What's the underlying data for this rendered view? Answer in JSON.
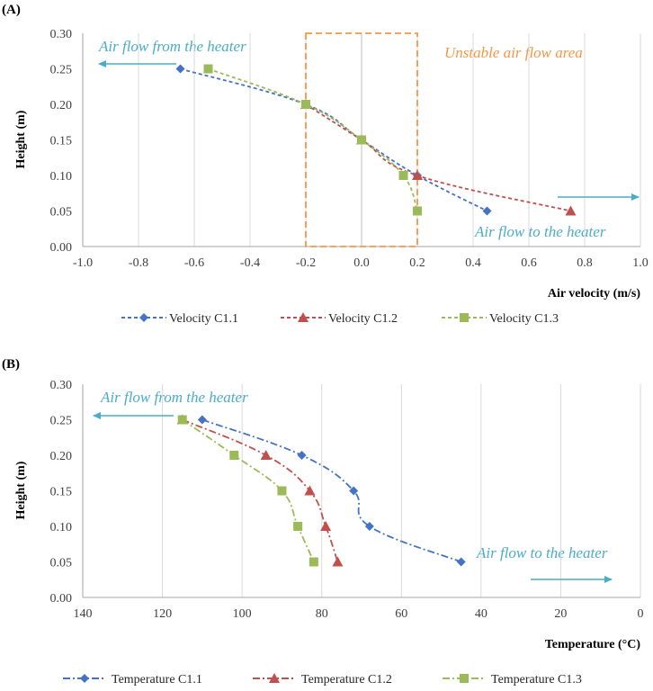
{
  "colors": {
    "blue": "#4472C4",
    "red": "#C0504D",
    "green": "#9BBB59",
    "arrow": "#4BACC6",
    "orange": "#F79646",
    "grid": "#D9D9D9",
    "axis": "#A6A6A6"
  },
  "chart_data": [
    {
      "type": "line",
      "panel_label": "(A)",
      "xlabel": "Air velocity (m/s)",
      "ylabel": "Height (m)",
      "xlim": [
        -1.0,
        1.0
      ],
      "ylim": [
        0.0,
        0.3
      ],
      "x_ticks": [
        "-1.0",
        "-0.8",
        "-0.6",
        "-0.4",
        "-0.2",
        "0.0",
        "0.2",
        "0.4",
        "0.6",
        "0.8",
        "1.0"
      ],
      "y_ticks": [
        "0.00",
        "0.05",
        "0.10",
        "0.15",
        "0.20",
        "0.25",
        "0.30"
      ],
      "grid": "vertical",
      "legend_position": "bottom",
      "series": [
        {
          "name": "Velocity C1.1",
          "marker": "diamond",
          "color_key": "blue",
          "points": [
            [
              -0.65,
              0.25
            ],
            [
              -0.2,
              0.2
            ],
            [
              0.0,
              0.15
            ],
            [
              0.2,
              0.1
            ],
            [
              0.45,
              0.05
            ]
          ]
        },
        {
          "name": "Velocity C1.2",
          "marker": "triangle",
          "color_key": "red",
          "points": [
            [
              -0.2,
              0.2
            ],
            [
              0.0,
              0.15
            ],
            [
              0.2,
              0.1
            ],
            [
              0.75,
              0.05
            ]
          ]
        },
        {
          "name": "Velocity C1.3",
          "marker": "square",
          "color_key": "green",
          "points": [
            [
              -0.55,
              0.25
            ],
            [
              -0.2,
              0.2
            ],
            [
              0.0,
              0.15
            ],
            [
              0.15,
              0.1
            ],
            [
              0.2,
              0.05
            ]
          ]
        }
      ],
      "annotations": {
        "from_heater": "Air flow from the heater",
        "to_heater": "Air flow to the heater",
        "unstable": "Unstable air flow area"
      },
      "unstable_region": [
        -0.2,
        0.2
      ]
    },
    {
      "type": "line",
      "panel_label": "(B)",
      "xlabel": "Temperature (°C)",
      "ylabel": "Height (m)",
      "xlim": [
        140,
        0
      ],
      "ylim": [
        0.0,
        0.3
      ],
      "x_ticks": [
        "140",
        "120",
        "100",
        "80",
        "60",
        "40",
        "20",
        "0"
      ],
      "y_ticks": [
        "0.00",
        "0.05",
        "0.10",
        "0.15",
        "0.20",
        "0.25",
        "0.30"
      ],
      "grid": "vertical",
      "legend_position": "bottom",
      "series": [
        {
          "name": "Temperature C1.1",
          "marker": "diamond",
          "color_key": "blue",
          "points": [
            [
              110,
              0.25
            ],
            [
              85,
              0.2
            ],
            [
              72,
              0.15
            ],
            [
              68,
              0.1
            ],
            [
              45,
              0.05
            ]
          ]
        },
        {
          "name": "Temperature C1.2",
          "marker": "triangle",
          "color_key": "red",
          "points": [
            [
              115,
              0.25
            ],
            [
              94,
              0.2
            ],
            [
              83,
              0.15
            ],
            [
              79,
              0.1
            ],
            [
              76,
              0.05
            ]
          ]
        },
        {
          "name": "Temperature C1.3",
          "marker": "square",
          "color_key": "green",
          "points": [
            [
              115,
              0.25
            ],
            [
              102,
              0.2
            ],
            [
              90,
              0.15
            ],
            [
              86,
              0.1
            ],
            [
              82,
              0.05
            ]
          ]
        }
      ],
      "annotations": {
        "from_heater": "Air flow from the heater",
        "to_heater": "Air flow to the heater"
      }
    }
  ]
}
